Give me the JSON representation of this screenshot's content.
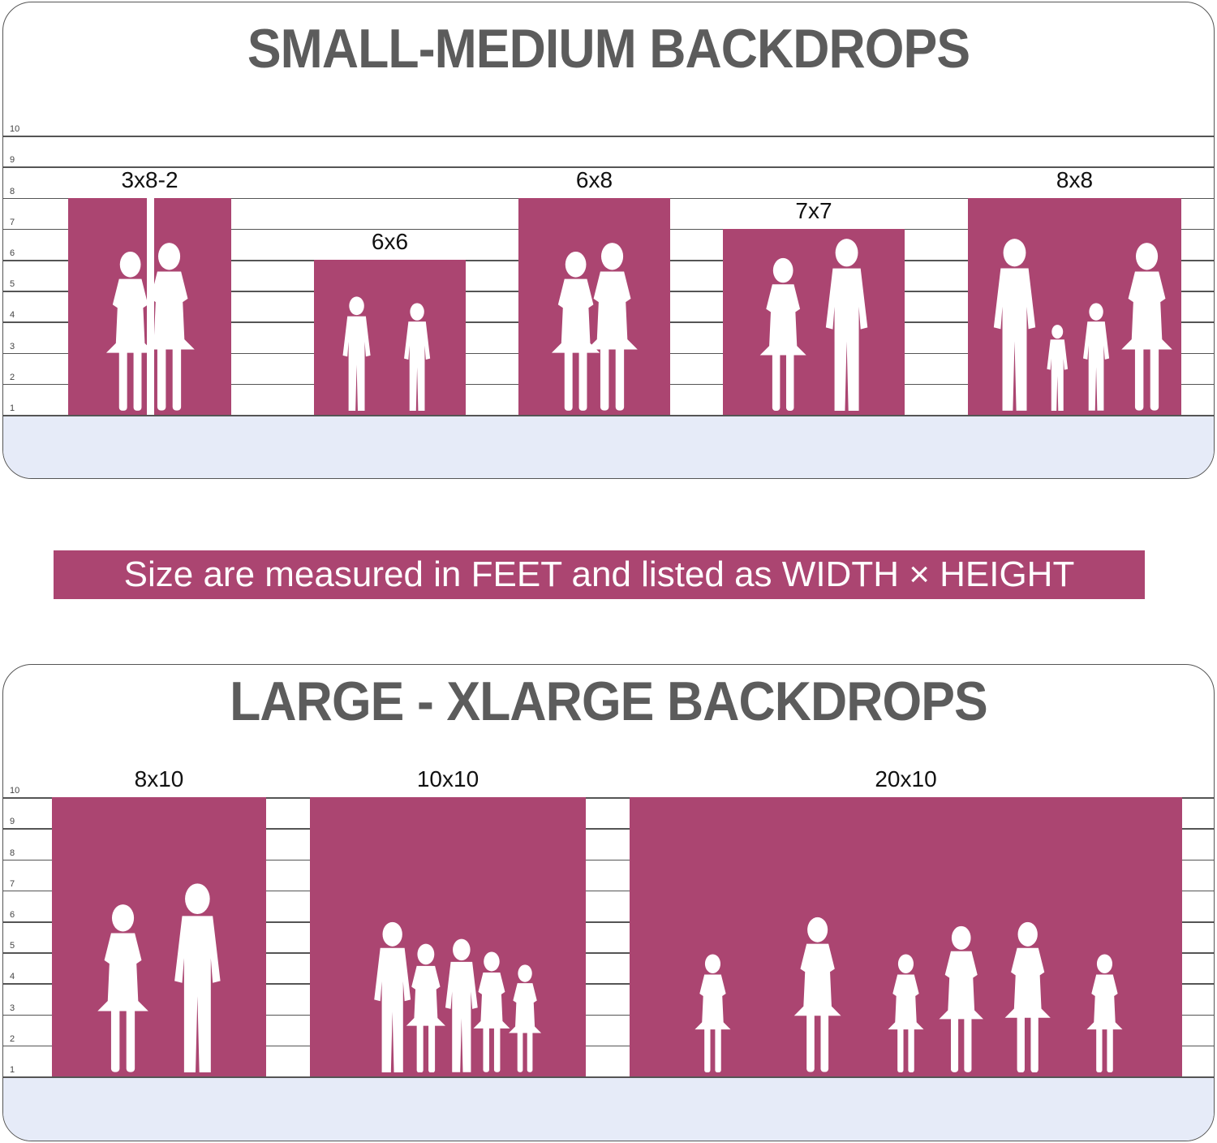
{
  "unit": "feet",
  "axis_ticks": [
    1,
    2,
    3,
    4,
    5,
    6,
    7,
    8,
    9,
    10
  ],
  "colors": {
    "backdrop": "#ab4571",
    "floor": "#e6ebf8",
    "title": "#5c5c5c",
    "banner_text": "#ffffff"
  },
  "panels": [
    {
      "title": "SMALL-MEDIUM BACKDROPS",
      "backdrops": [
        {
          "label": "3x8-2",
          "width_ft": 3,
          "height_ft": 8,
          "panels": 2,
          "silhouette": "two-girls"
        },
        {
          "label": "6x6",
          "width_ft": 6,
          "height_ft": 6,
          "silhouette": "two-toddlers"
        },
        {
          "label": "6x8",
          "width_ft": 6,
          "height_ft": 8,
          "silhouette": "two-girls"
        },
        {
          "label": "7x7",
          "width_ft": 7,
          "height_ft": 7,
          "silhouette": "couple-with-bicycle"
        },
        {
          "label": "8x8",
          "width_ft": 8,
          "height_ft": 8,
          "silhouette": "family-of-four"
        }
      ]
    },
    {
      "title": "LARGE - XLARGE BACKDROPS",
      "backdrops": [
        {
          "label": "8x10",
          "width_ft": 8,
          "height_ft": 10,
          "silhouette": "couple-with-bicycle"
        },
        {
          "label": "10x10",
          "width_ft": 10,
          "height_ft": 10,
          "silhouette": "group-of-people"
        },
        {
          "label": "20x10",
          "width_ft": 20,
          "height_ft": 10,
          "silhouette": "cheerleaders"
        }
      ]
    }
  ],
  "banner": "Size are measured in FEET and listed as WIDTH × HEIGHT"
}
